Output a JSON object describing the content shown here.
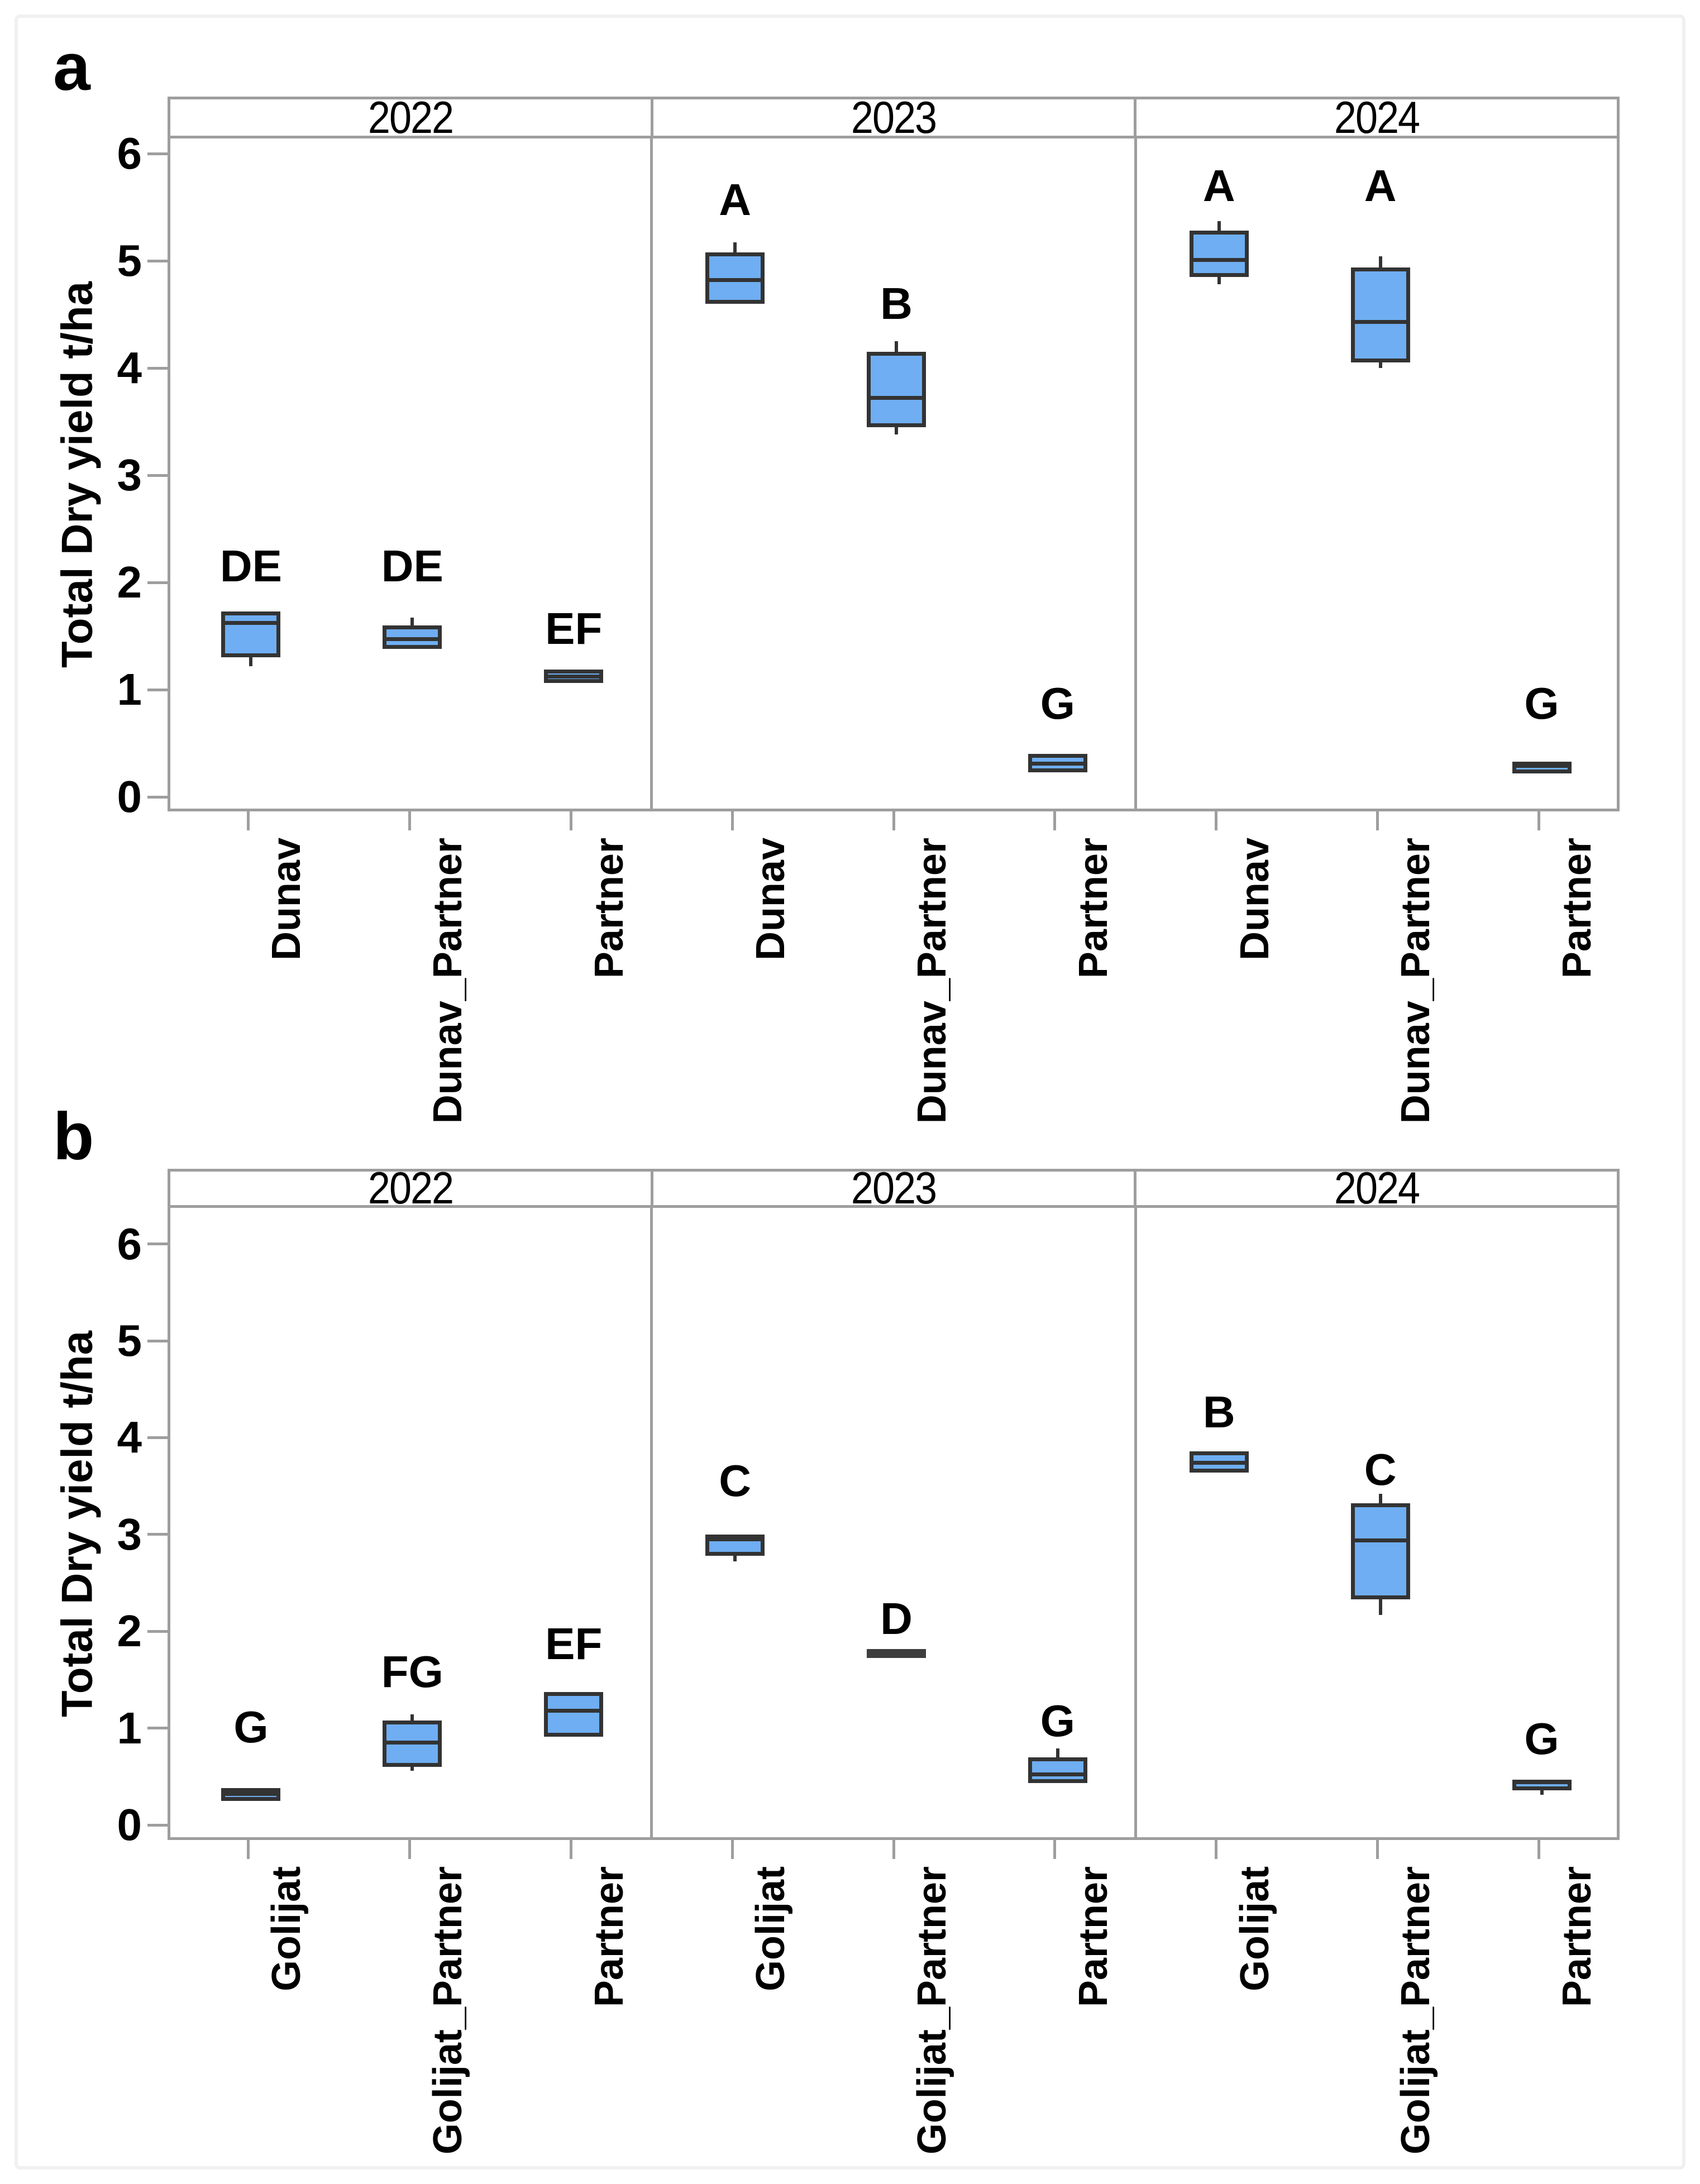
{
  "figure": {
    "background": "#ffffff",
    "frame_color": "#f0f0f0"
  },
  "colors": {
    "box_fill": "#6FAEF2",
    "box_border": "#333333",
    "median_line": "#333333",
    "degenerate_box": "#3e3e3e",
    "axis_gray": "#9e9e9e",
    "text": "#000000",
    "strip_background": "#ffffff"
  },
  "chart_data": [
    {
      "type": "boxplot",
      "panel_label": "a",
      "ylabel": "Total Dry yield t/ha",
      "yticks": [
        0,
        1,
        2,
        3,
        4,
        5,
        6
      ],
      "ylim": [
        -0.14,
        6.15
      ],
      "grid": false,
      "legend": "none",
      "facets": [
        {
          "year": "2022",
          "boxes": [
            {
              "category": "Dunav",
              "q1": 1.3,
              "median": 1.62,
              "q3": 1.73,
              "whisker_low": 1.22,
              "whisker_high": null,
              "letter": "DE",
              "letter_y": 2.15
            },
            {
              "category": "Dunav_Partner",
              "q1": 1.38,
              "median": 1.47,
              "q3": 1.6,
              "whisker_low": null,
              "whisker_high": 1.67,
              "letter": "DE",
              "letter_y": 2.15
            },
            {
              "category": "Partner",
              "q1": 1.06,
              "median": 1.12,
              "q3": 1.19,
              "whisker_low": null,
              "whisker_high": null,
              "letter": "EF",
              "letter_y": 1.57
            }
          ]
        },
        {
          "year": "2023",
          "boxes": [
            {
              "category": "Dunav",
              "q1": 4.6,
              "median": 4.82,
              "q3": 5.08,
              "whisker_low": null,
              "whisker_high": 5.17,
              "letter": "A",
              "letter_y": 5.57
            },
            {
              "category": "Dunav_Partner",
              "q1": 3.45,
              "median": 3.72,
              "q3": 4.15,
              "whisker_low": 3.38,
              "whisker_high": 4.25,
              "letter": "B",
              "letter_y": 4.6
            },
            {
              "category": "Partner",
              "q1": 0.23,
              "median": 0.31,
              "q3": 0.4,
              "whisker_low": null,
              "whisker_high": null,
              "letter": "G",
              "letter_y": 0.87
            }
          ]
        },
        {
          "year": "2024",
          "boxes": [
            {
              "category": "Dunav",
              "q1": 4.85,
              "median": 5.01,
              "q3": 5.28,
              "whisker_low": 4.78,
              "whisker_high": 5.37,
              "letter": "A",
              "letter_y": 5.7
            },
            {
              "category": "Dunav_Partner",
              "q1": 4.05,
              "median": 4.43,
              "q3": 4.94,
              "whisker_low": 4.0,
              "whisker_high": 5.04,
              "letter": "A",
              "letter_y": 5.7
            },
            {
              "category": "Partner",
              "q1": 0.22,
              "median": 0.29,
              "q3": 0.33,
              "whisker_low": null,
              "whisker_high": null,
              "letter": "G",
              "letter_y": 0.87
            }
          ]
        }
      ]
    },
    {
      "type": "boxplot",
      "panel_label": "b",
      "ylabel": "Total Dry yield t/ha",
      "yticks": [
        0,
        1,
        2,
        3,
        4,
        5,
        6
      ],
      "ylim": [
        -0.16,
        6.37
      ],
      "grid": false,
      "legend": "none",
      "facets": [
        {
          "year": "2022",
          "boxes": [
            {
              "category": "Golijat",
              "q1": 0.25,
              "median": 0.32,
              "q3": 0.38,
              "whisker_low": null,
              "whisker_high": null,
              "letter": "G",
              "letter_y": 1.01
            },
            {
              "category": "Golijat_Partner",
              "q1": 0.6,
              "median": 0.85,
              "q3": 1.08,
              "whisker_low": 0.56,
              "whisker_high": 1.14,
              "letter": "FG",
              "letter_y": 1.58
            },
            {
              "category": "Partner",
              "q1": 0.91,
              "median": 1.18,
              "q3": 1.37,
              "whisker_low": null,
              "whisker_high": null,
              "letter": "EF",
              "letter_y": 1.87
            }
          ]
        },
        {
          "year": "2023",
          "boxes": [
            {
              "category": "Golijat",
              "q1": 2.78,
              "median": 2.95,
              "q3": 3.0,
              "whisker_low": 2.72,
              "whisker_high": null,
              "letter": "C",
              "letter_y": 3.55
            },
            {
              "category": "Golijat_Partner",
              "q1": 1.75,
              "median": 1.77,
              "q3": 1.79,
              "whisker_low": null,
              "whisker_high": null,
              "letter": "D",
              "letter_y": 2.13
            },
            {
              "category": "Partner",
              "q1": 0.43,
              "median": 0.52,
              "q3": 0.7,
              "whisker_low": null,
              "whisker_high": 0.79,
              "letter": "G",
              "letter_y": 1.07
            }
          ]
        },
        {
          "year": "2024",
          "boxes": [
            {
              "category": "Golijat",
              "q1": 3.64,
              "median": 3.74,
              "q3": 3.86,
              "whisker_low": null,
              "whisker_high": null,
              "letter": "B",
              "letter_y": 4.26
            },
            {
              "category": "Golijat_Partner",
              "q1": 2.33,
              "median": 2.94,
              "q3": 3.32,
              "whisker_low": 2.17,
              "whisker_high": 3.42,
              "letter": "C",
              "letter_y": 3.67
            },
            {
              "category": "Partner",
              "q1": 0.36,
              "median": 0.44,
              "q3": 0.47,
              "whisker_low": 0.31,
              "whisker_high": null,
              "letter": "G",
              "letter_y": 0.89
            }
          ]
        }
      ]
    }
  ]
}
